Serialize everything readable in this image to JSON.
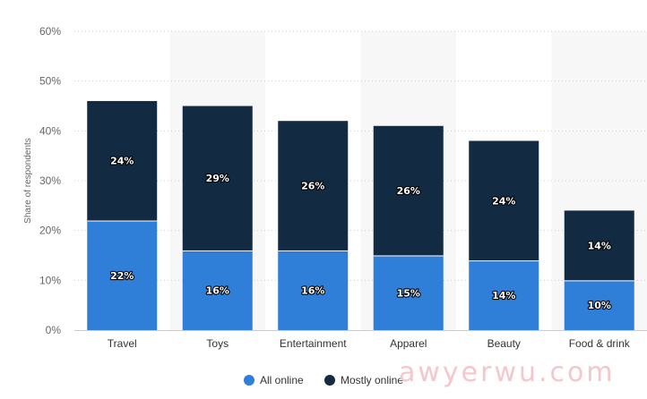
{
  "chart_data": {
    "type": "bar",
    "stacked": true,
    "categories": [
      "Travel",
      "Toys",
      "Entertainment",
      "Apparel",
      "Beauty",
      "Food & drink"
    ],
    "series": [
      {
        "name": "All online",
        "color": "#2f7ed8",
        "values": [
          22,
          16,
          16,
          15,
          14,
          10
        ]
      },
      {
        "name": "Mostly online",
        "color": "#132a43",
        "values": [
          24,
          29,
          26,
          26,
          24,
          14
        ]
      }
    ],
    "ylabel": "Share of respondents",
    "ylim": [
      0,
      60
    ],
    "yticks": [
      "0%",
      "10%",
      "20%",
      "30%",
      "40%",
      "50%",
      "60%"
    ],
    "value_suffix": "%",
    "grid": true,
    "legend_position": "bottom-center"
  },
  "watermark": "awyerwu.com"
}
